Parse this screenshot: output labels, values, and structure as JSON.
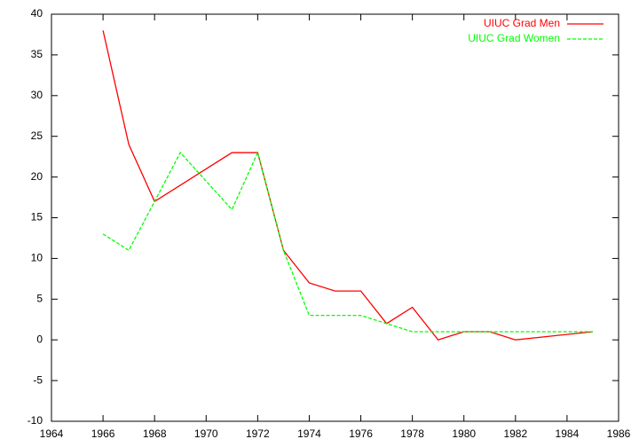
{
  "chart_data": {
    "type": "line",
    "series": [
      {
        "name": "UIUC Grad Men",
        "color": "#ff0000",
        "dash": false,
        "x": [
          1966,
          1967,
          1968,
          1969,
          1970,
          1971,
          1972,
          1973,
          1974,
          1975,
          1976,
          1977,
          1978,
          1979,
          1980,
          1981,
          1982,
          1985
        ],
        "values": [
          38,
          24,
          17,
          19,
          21,
          23,
          23,
          11,
          7,
          6,
          6,
          2,
          4,
          0,
          1,
          1,
          0,
          1
        ]
      },
      {
        "name": "UIUC Grad Women",
        "color": "#00ff00",
        "dash": true,
        "x": [
          1966,
          1967,
          1968,
          1969,
          1971,
          1972,
          1973,
          1974,
          1975,
          1976,
          1977,
          1978,
          1979,
          1980,
          1981,
          1982,
          1985
        ],
        "values": [
          13,
          11,
          17,
          23,
          16,
          23,
          11,
          3,
          3,
          3,
          2,
          1,
          1,
          1,
          1,
          1,
          1
        ]
      }
    ],
    "xlim": [
      1964,
      1986
    ],
    "xticks": [
      1964,
      1966,
      1968,
      1970,
      1972,
      1974,
      1976,
      1978,
      1980,
      1982,
      1984,
      1986
    ],
    "ylim": [
      -10,
      40
    ],
    "yticks": [
      -10,
      -5,
      0,
      5,
      10,
      15,
      20,
      25,
      30,
      35,
      40
    ],
    "legend": "top-right"
  }
}
